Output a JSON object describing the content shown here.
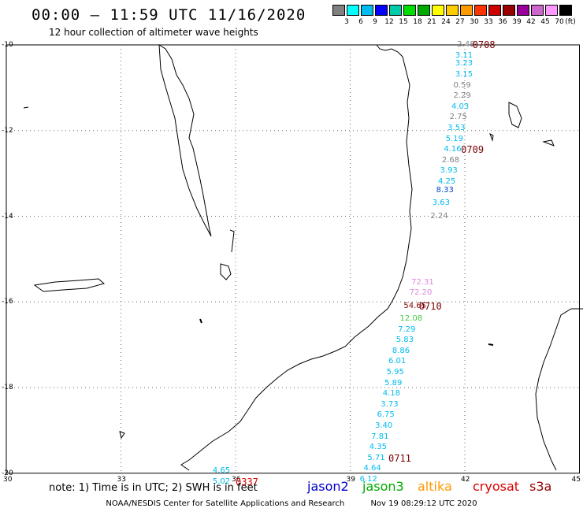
{
  "header": {
    "title": "00:00 — 11:59 UTC 11/16/2020",
    "subtitle": "12 hour collection of altimeter wave heights"
  },
  "legend": {
    "unit": "(ft)",
    "colors": [
      "#808080",
      "#00ffff",
      "#00bbee",
      "#0000ff",
      "#00ccaa",
      "#00dd00",
      "#00aa00",
      "#ffff00",
      "#ffcc00",
      "#ff9900",
      "#ff3300",
      "#cc0000",
      "#990000",
      "#990099",
      "#cc66cc",
      "#ff99ff",
      "#000000"
    ],
    "labels": [
      "3",
      "6",
      "9",
      "12",
      "15",
      "18",
      "21",
      "24",
      "27",
      "30",
      "33",
      "36",
      "39",
      "42",
      "45",
      "70"
    ]
  },
  "map": {
    "lon_labels": [
      "30",
      "33",
      "36",
      "39",
      "42",
      "45"
    ],
    "lat_labels": [
      "-10",
      "-12",
      "-14",
      "-16",
      "-18",
      "-20"
    ],
    "lon_values": [
      30,
      33,
      36,
      39,
      42,
      45
    ],
    "lat_values": [
      -10,
      -12,
      -14,
      -16,
      -18,
      -20
    ],
    "grid_style": "dotted"
  },
  "observations": [
    {
      "v": "2.48",
      "lon": 41.8,
      "lat": -10.0,
      "color": "#808080"
    },
    {
      "v": "3.11",
      "lon": 41.75,
      "lat": -10.25,
      "color": "#00bbee"
    },
    {
      "v": "3.23",
      "lon": 41.75,
      "lat": -10.45,
      "color": "#00bbee"
    },
    {
      "v": "3.15",
      "lon": 41.75,
      "lat": -10.7,
      "color": "#00bbee"
    },
    {
      "v": "0.59",
      "lon": 41.7,
      "lat": -10.95,
      "color": "#808080"
    },
    {
      "v": "2.29",
      "lon": 41.7,
      "lat": -11.2,
      "color": "#808080"
    },
    {
      "v": "4.03",
      "lon": 41.65,
      "lat": -11.45,
      "color": "#00bbee"
    },
    {
      "v": "2.75",
      "lon": 41.6,
      "lat": -11.7,
      "color": "#808080"
    },
    {
      "v": "3.53",
      "lon": 41.55,
      "lat": -11.95,
      "color": "#00bbee"
    },
    {
      "v": "5.19",
      "lon": 41.5,
      "lat": -12.2,
      "color": "#00bbee"
    },
    {
      "v": "4.16",
      "lon": 41.45,
      "lat": -12.45,
      "color": "#00bbee"
    },
    {
      "v": "2.68",
      "lon": 41.4,
      "lat": -12.7,
      "color": "#808080"
    },
    {
      "v": "3.93",
      "lon": 41.35,
      "lat": -12.95,
      "color": "#00bbee"
    },
    {
      "v": "4.25",
      "lon": 41.3,
      "lat": -13.2,
      "color": "#00bbee"
    },
    {
      "v": "8.33",
      "lon": 41.25,
      "lat": -13.4,
      "color": "#0044cc"
    },
    {
      "v": "3.63",
      "lon": 41.15,
      "lat": -13.7,
      "color": "#00bbee"
    },
    {
      "v": "2.24",
      "lon": 41.1,
      "lat": -14.0,
      "color": "#808080"
    },
    {
      "v": "72.31",
      "lon": 40.6,
      "lat": -15.55,
      "color": "#dd88dd"
    },
    {
      "v": "72.20",
      "lon": 40.55,
      "lat": -15.8,
      "color": "#dd88dd"
    },
    {
      "v": "54.65",
      "lon": 40.4,
      "lat": -16.1,
      "color": "#880000"
    },
    {
      "v": "12.08",
      "lon": 40.3,
      "lat": -16.4,
      "color": "#44cc44"
    },
    {
      "v": "7.29",
      "lon": 40.25,
      "lat": -16.65,
      "color": "#00bbee"
    },
    {
      "v": "5.83",
      "lon": 40.2,
      "lat": -16.9,
      "color": "#00bbee"
    },
    {
      "v": "8.86",
      "lon": 40.1,
      "lat": -17.15,
      "color": "#00bbee"
    },
    {
      "v": "6.01",
      "lon": 40.0,
      "lat": -17.4,
      "color": "#00bbee"
    },
    {
      "v": "5.95",
      "lon": 39.95,
      "lat": -17.65,
      "color": "#00bbee"
    },
    {
      "v": "5.89",
      "lon": 39.9,
      "lat": -17.9,
      "color": "#00bbee"
    },
    {
      "v": "4.18",
      "lon": 39.85,
      "lat": -18.15,
      "color": "#00bbee"
    },
    {
      "v": "3.73",
      "lon": 39.8,
      "lat": -18.4,
      "color": "#00bbee"
    },
    {
      "v": "6.75",
      "lon": 39.7,
      "lat": -18.65,
      "color": "#00bbee"
    },
    {
      "v": "3.40",
      "lon": 39.65,
      "lat": -18.9,
      "color": "#00bbee"
    },
    {
      "v": "7.81",
      "lon": 39.55,
      "lat": -19.15,
      "color": "#00bbee"
    },
    {
      "v": "4.35",
      "lon": 39.5,
      "lat": -19.4,
      "color": "#00bbee"
    },
    {
      "v": "5.71",
      "lon": 39.45,
      "lat": -19.65,
      "color": "#00bbee"
    },
    {
      "v": "4.64",
      "lon": 39.35,
      "lat": -19.9,
      "color": "#00bbee"
    },
    {
      "v": "6.12",
      "lon": 39.25,
      "lat": -20.15,
      "color": "#00bbee"
    },
    {
      "v": "4.65",
      "lon": 35.4,
      "lat": -19.95,
      "color": "#00bbee"
    },
    {
      "v": "5.02",
      "lon": 35.4,
      "lat": -20.2,
      "color": "#00bbee"
    }
  ],
  "pass_times": [
    {
      "t": "0708",
      "lon": 42.2,
      "lat": -10.0
    },
    {
      "t": "0709",
      "lon": 41.9,
      "lat": -12.45
    },
    {
      "t": "0710",
      "lon": 40.8,
      "lat": -16.1
    },
    {
      "t": "0711",
      "lon": 40.0,
      "lat": -19.65
    },
    {
      "t": "0337",
      "lon": 36.0,
      "lat": -20.2,
      "color": "#dd0000"
    }
  ],
  "note": "note: 1) Time is in UTC; 2) SWH is in feet",
  "satellites": [
    {
      "name": "jason2",
      "color": "#0000cc"
    },
    {
      "name": "jason3",
      "color": "#00aa00"
    },
    {
      "name": "altika",
      "color": "#ff9900"
    },
    {
      "name": "cryosat",
      "color": "#dd0000"
    },
    {
      "name": "s3a",
      "color": "#990000"
    }
  ],
  "footer": {
    "credit": "NOAA/NESDIS Center for Satellite Applications and Research",
    "timestamp": "Nov 19 08:29:12 UTC 2020"
  }
}
